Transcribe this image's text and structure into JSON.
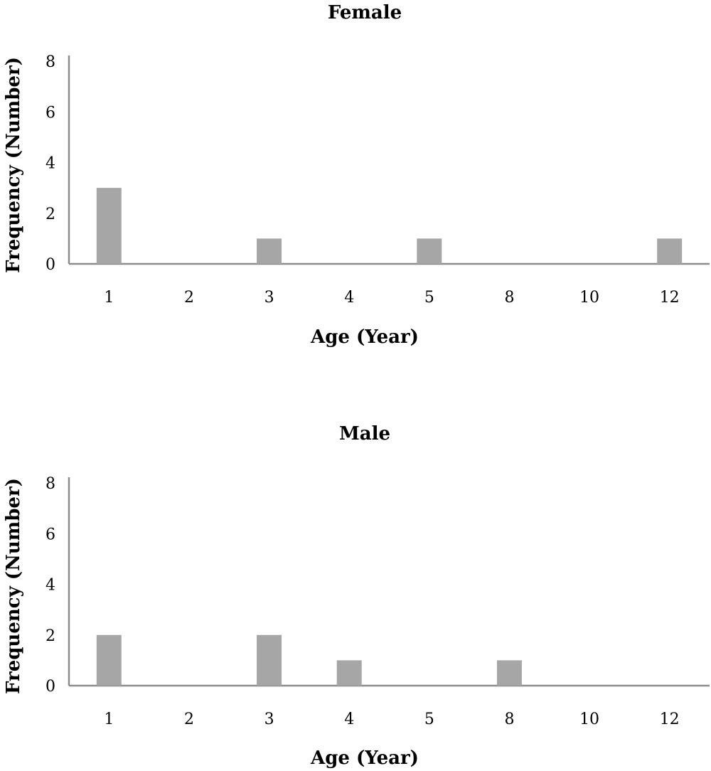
{
  "chart_data": [
    {
      "type": "bar",
      "title": "Female",
      "xlabel": "Age (Year)",
      "ylabel": "Frequency (Number)",
      "categories": [
        "1",
        "2",
        "3",
        "4",
        "5",
        "8",
        "10",
        "12"
      ],
      "values": [
        3,
        0,
        1,
        0,
        1,
        0,
        0,
        1
      ],
      "yticks": [
        "0",
        "2",
        "4",
        "6",
        "8"
      ],
      "ylim": [
        0,
        8
      ],
      "grid": false,
      "legend": "none",
      "bar_color": "#a6a6a6",
      "axis_color": "#8c8c8c"
    },
    {
      "type": "bar",
      "title": "Male",
      "xlabel": "Age (Year)",
      "ylabel": "Frequency (Number)",
      "categories": [
        "1",
        "2",
        "3",
        "4",
        "5",
        "8",
        "10",
        "12"
      ],
      "values": [
        2,
        0,
        2,
        1,
        0,
        1,
        0,
        0
      ],
      "yticks": [
        "0",
        "2",
        "4",
        "6",
        "8"
      ],
      "ylim": [
        0,
        8
      ],
      "grid": false,
      "legend": "none",
      "bar_color": "#a6a6a6",
      "axis_color": "#8c8c8c"
    }
  ]
}
